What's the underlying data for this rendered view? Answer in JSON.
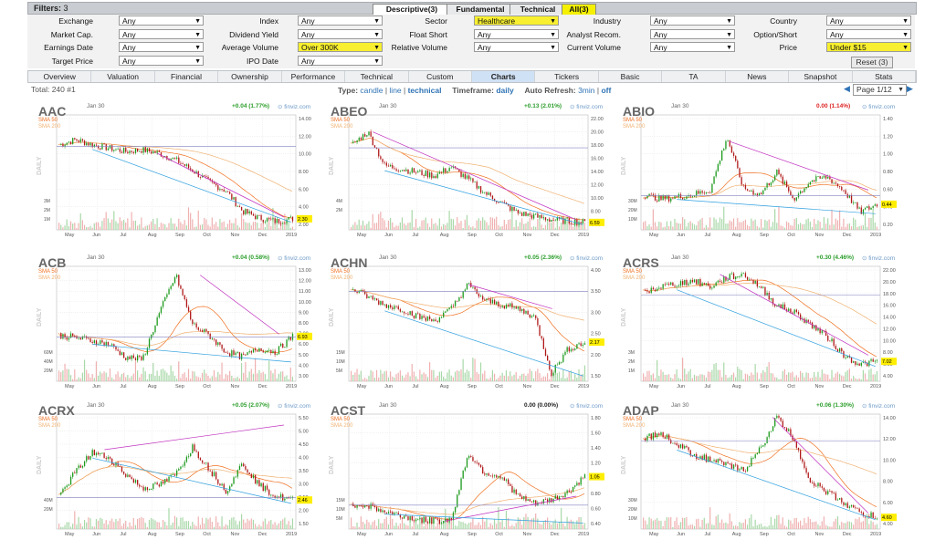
{
  "filters_bar": {
    "title": "Filters:",
    "count": "3",
    "tabs": [
      {
        "label": "Descriptive(3)",
        "style": "white"
      },
      {
        "label": "Fundamental",
        "style": "plain"
      },
      {
        "label": "Technical",
        "style": "plain"
      },
      {
        "label": "All(3)",
        "style": "yellow"
      }
    ]
  },
  "filters": [
    [
      {
        "label": "Exchange",
        "value": "Any"
      },
      {
        "label": "Index",
        "value": "Any"
      },
      {
        "label": "Sector",
        "value": "Healthcare",
        "hl": true
      },
      {
        "label": "Industry",
        "value": "Any"
      },
      {
        "label": "Country",
        "value": "Any"
      }
    ],
    [
      {
        "label": "Market Cap.",
        "value": "Any"
      },
      {
        "label": "Dividend Yield",
        "value": "Any"
      },
      {
        "label": "Float Short",
        "value": "Any"
      },
      {
        "label": "Analyst Recom.",
        "value": "Any"
      },
      {
        "label": "Option/Short",
        "value": "Any"
      }
    ],
    [
      {
        "label": "Earnings Date",
        "value": "Any"
      },
      {
        "label": "Average Volume",
        "value": "Over 300K",
        "hl": true
      },
      {
        "label": "Relative Volume",
        "value": "Any"
      },
      {
        "label": "Current Volume",
        "value": "Any"
      },
      {
        "label": "Price",
        "value": "Under $15",
        "hl": true
      }
    ],
    [
      {
        "label": "Target Price",
        "value": "Any"
      },
      {
        "label": "IPO Date",
        "value": "Any"
      }
    ]
  ],
  "reset_label": "Reset (3)",
  "view_tabs": [
    "Overview",
    "Valuation",
    "Financial",
    "Ownership",
    "Performance",
    "Technical",
    "Custom",
    "Charts",
    "Tickers",
    "Basic",
    "TA",
    "News",
    "Snapshot",
    "Stats"
  ],
  "active_view": "Charts",
  "info": {
    "total_label": "Total:",
    "total": "240",
    "pos": "#1",
    "type_label": "Type:",
    "type_candle": "candle",
    "type_line": "line",
    "type_technical": "technical",
    "timeframe_label": "Timeframe:",
    "timeframe": "daily",
    "refresh_label": "Auto Refresh:",
    "refresh_3min": "3min",
    "refresh_off": "off",
    "page": "Page 1/12"
  },
  "charts_common": {
    "date": "Jan 30",
    "watermark": "finviz.com",
    "sma50": "SMA 50",
    "sma200": "SMA 200",
    "daily": "DAILY",
    "months": [
      "May",
      "Jun",
      "Jul",
      "Aug",
      "Sep",
      "Oct",
      "Nov",
      "Dec",
      "2019"
    ]
  },
  "charts": [
    {
      "ticker": "AAC",
      "change": "+0.04 (1.77%)",
      "color": "#2a9d2a",
      "last": "2.30",
      "yticks": [
        "14.00",
        "12.00",
        "10.00",
        "8.00",
        "6.00",
        "4.00",
        "2.00"
      ],
      "vticks": [
        "3M",
        "2M",
        "1M"
      ],
      "shape": [
        11,
        11.6,
        11,
        10.6,
        10.2,
        10.4,
        10,
        9.2,
        8,
        6.6,
        5.6,
        3.2,
        2.4,
        2,
        2.3
      ],
      "ymin": 1,
      "ymax": 14.5,
      "trend": [
        [
          0.42,
          10
        ],
        [
          0.95,
          2.5
        ]
      ]
    },
    {
      "ticker": "ABEO",
      "change": "+0.13 (2.01%)",
      "color": "#2a9d2a",
      "last": "6.59",
      "yticks": [
        "22.00",
        "20.00",
        "18.00",
        "16.00",
        "14.00",
        "12.00",
        "10.00",
        "8.00",
        "6.00"
      ],
      "vticks": [
        "4M",
        "2M"
      ],
      "shape": [
        18,
        20,
        15,
        14.5,
        14,
        13.5,
        14.8,
        13,
        11,
        9.5,
        8,
        7.5,
        7,
        6.8,
        6.6
      ],
      "ymin": 5.5,
      "ymax": 22.5,
      "trend": [
        [
          0.1,
          20
        ],
        [
          0.95,
          7
        ]
      ]
    },
    {
      "ticker": "ABIO",
      "change": "0.00 (1.14%)",
      "color": "#d22",
      "last": "0.44",
      "yticks": [
        "1.40",
        "1.20",
        "1.00",
        "0.80",
        "0.60",
        "0.40",
        "0.20"
      ],
      "vticks": [
        "30M",
        "20M",
        "10M"
      ],
      "shape": [
        0.55,
        0.5,
        0.52,
        0.55,
        0.6,
        1.2,
        0.62,
        0.55,
        0.8,
        0.5,
        0.7,
        0.75,
        0.6,
        0.35,
        0.44
      ],
      "ymin": 0.15,
      "ymax": 1.45,
      "trend": [
        [
          0.37,
          1.15
        ],
        [
          0.95,
          0.6
        ]
      ]
    },
    {
      "ticker": "ACB",
      "change": "+0.04 (0.58%)",
      "color": "#2a9d2a",
      "last": "6.93",
      "yticks": [
        "13.00",
        "12.00",
        "11.00",
        "10.00",
        "9.00",
        "8.00",
        "7.00",
        "6.00",
        "5.00",
        "4.00",
        "3.00"
      ],
      "vticks": [
        "60M",
        "40M",
        "20M"
      ],
      "shape": [
        7,
        6.8,
        6.5,
        6.2,
        5,
        4.8,
        9,
        12.5,
        8,
        7,
        5.5,
        5,
        5.8,
        5.5,
        6.9
      ],
      "ymin": 2.8,
      "ymax": 13.3,
      "trend": [
        [
          0.6,
          12.5
        ],
        [
          0.93,
          7.1
        ]
      ]
    },
    {
      "ticker": "ACHN",
      "change": "+0.05 (2.36%)",
      "color": "#2a9d2a",
      "last": "2.17",
      "yticks": [
        "4.00",
        "3.50",
        "3.00",
        "2.50",
        "2.00",
        "1.50"
      ],
      "vticks": [
        "15M",
        "10M",
        "5M"
      ],
      "shape": [
        3.5,
        3.3,
        3.1,
        3,
        2.8,
        2.7,
        3,
        3.6,
        3.2,
        3.1,
        3,
        2.8,
        1.4,
        2,
        2.17
      ],
      "ymin": 1.2,
      "ymax": 4.05,
      "trend": [
        [
          0.5,
          3.6
        ],
        [
          0.85,
          3
        ]
      ]
    },
    {
      "ticker": "ACRS",
      "change": "+0.30 (4.46%)",
      "color": "#2a9d2a",
      "last": "7.02",
      "yticks": [
        "22.00",
        "20.00",
        "18.00",
        "16.00",
        "14.00",
        "12.00",
        "10.00",
        "8.00",
        "6.00",
        "4.00"
      ],
      "vticks": [
        "3M",
        "2M",
        "1M"
      ],
      "shape": [
        18,
        19,
        19.5,
        20,
        19,
        20.5,
        21,
        19,
        16,
        15,
        13,
        11,
        8,
        6.5,
        7
      ],
      "ymin": 3.8,
      "ymax": 22.3,
      "trend": [
        [
          0.33,
          21
        ],
        [
          0.95,
          8
        ]
      ]
    },
    {
      "ticker": "ACRX",
      "change": "+0.05 (2.07%)",
      "color": "#2a9d2a",
      "last": "2.46",
      "yticks": [
        "5.50",
        "5.00",
        "4.50",
        "4.00",
        "3.50",
        "3.00",
        "2.50",
        "2.00",
        "1.50"
      ],
      "vticks": [
        "40M",
        "20M"
      ],
      "shape": [
        2.6,
        3.5,
        4.2,
        4,
        3.4,
        2.9,
        3,
        3.4,
        4.4,
        3.6,
        2.8,
        3.8,
        3,
        2.6,
        2.46
      ],
      "ymin": 1.4,
      "ymax": 5.6,
      "trend": [
        [
          0.2,
          4.3
        ],
        [
          0.95,
          5.2
        ]
      ]
    },
    {
      "ticker": "ACST",
      "change": "0.00 (0.00%)",
      "color": "#222",
      "last": "1.05",
      "yticks": [
        "1.80",
        "1.60",
        "1.40",
        "1.20",
        "1.00",
        "0.80",
        "0.60",
        "0.40"
      ],
      "vticks": [
        "15M",
        "10M",
        "5M"
      ],
      "shape": [
        0.7,
        0.68,
        0.6,
        0.55,
        0.5,
        0.48,
        0.5,
        1.35,
        1.1,
        1.05,
        0.8,
        0.7,
        0.75,
        0.85,
        1.05
      ],
      "ymin": 0.38,
      "ymax": 1.85,
      "trend": [
        [
          0.4,
          0.48
        ],
        [
          0.95,
          0.8
        ]
      ]
    },
    {
      "ticker": "ADAP",
      "change": "+0.06 (1.30%)",
      "color": "#2a9d2a",
      "last": "4.60",
      "yticks": [
        "14.00",
        "12.00",
        "10.00",
        "8.00",
        "6.00",
        "4.00"
      ],
      "vticks": [
        "30M",
        "20M",
        "10M"
      ],
      "shape": [
        12,
        12.5,
        11.5,
        10.5,
        10,
        9.5,
        9,
        11,
        14,
        12,
        8,
        7,
        6,
        5,
        4.6
      ],
      "ymin": 3.5,
      "ymax": 14.3,
      "trend": [
        [
          0.55,
          14
        ],
        [
          0.95,
          5
        ]
      ]
    }
  ]
}
